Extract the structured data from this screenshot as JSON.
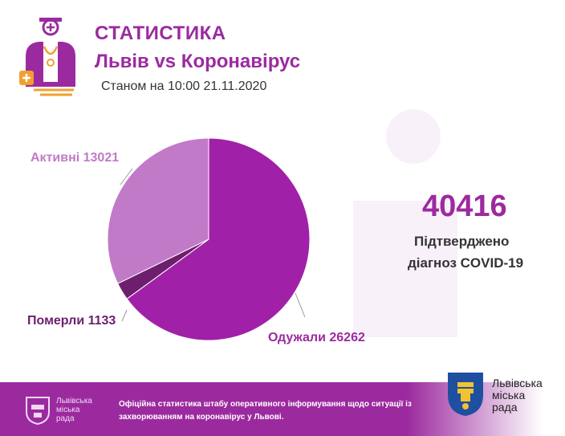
{
  "header": {
    "title": "СТАТИСТИКА",
    "subtitle": "Львів vs Коронавірус",
    "as_of": "Станом на 10:00 21.11.2020"
  },
  "summary": {
    "total": "40416",
    "caption_line1": "Підтверджено",
    "caption_line2": "діагноз COVID-19"
  },
  "chart_data": {
    "type": "pie",
    "slices": [
      {
        "label": "Одужали",
        "value": 26262,
        "color": "#a020a8",
        "display": "Одужали 26262"
      },
      {
        "label": "Померли",
        "value": 1133,
        "color": "#6d1f6e",
        "display": "Померли 1133"
      },
      {
        "label": "Активні",
        "value": 13021,
        "color": "#c17ac7",
        "display": "Активні 13021"
      }
    ]
  },
  "footer": {
    "org_name": [
      "Львівська",
      "міська",
      "рада"
    ],
    "text": "Офіційна статистика штабу оперативного інформування щодо ситуації із захворюванням на коронавірус у Львові."
  },
  "brand": {
    "name": [
      "Львівська",
      "міська",
      "рада"
    ],
    "accent": "#9c2a9f"
  },
  "icons": [
    "doctor-icon",
    "city-council-emblem-icon",
    "lion-coat-of-arms-icon"
  ]
}
